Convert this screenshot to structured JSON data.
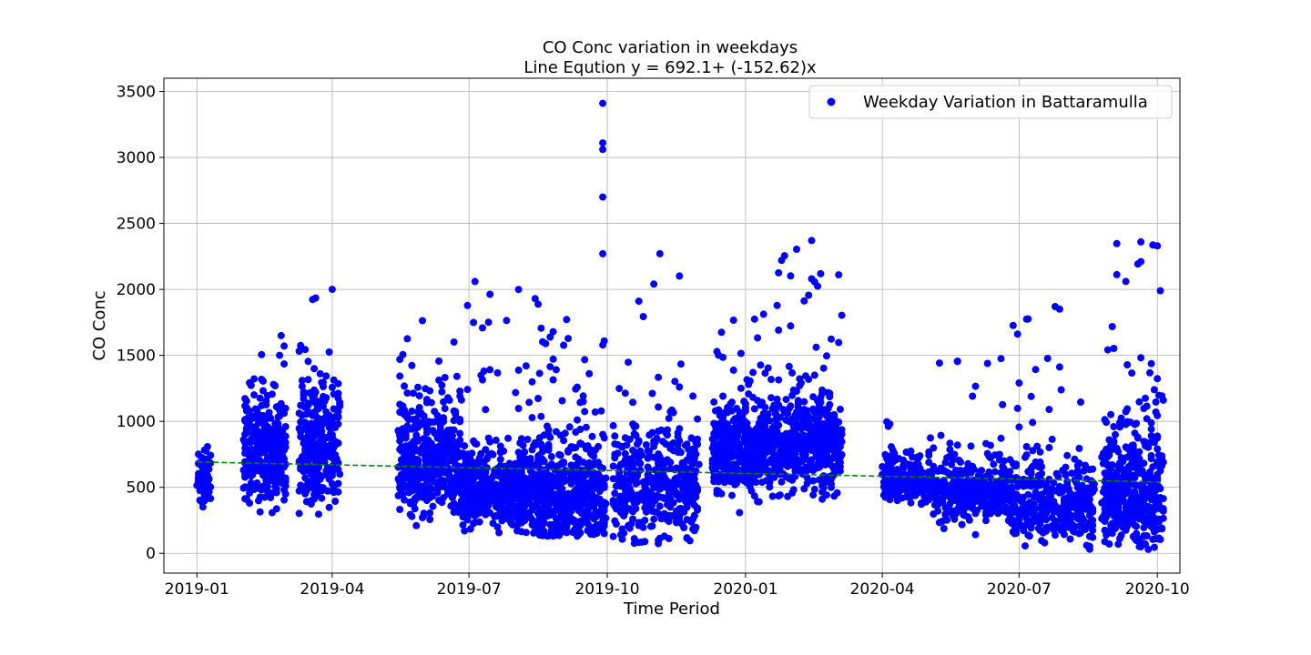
{
  "chart_data": {
    "type": "scatter",
    "title": "CO Conc variation in weekdays",
    "subtitle": "Line Eqution y = 692.1+ (-152.62)x",
    "xlabel": "Time Period",
    "ylabel": "CO Conc",
    "x_range": [
      "2018-12-10",
      "2020-10-16"
    ],
    "ylim": [
      -150,
      3600
    ],
    "x_ticks": [
      "2019-01",
      "2019-04",
      "2019-07",
      "2019-10",
      "2020-01",
      "2020-04",
      "2020-07",
      "2020-10"
    ],
    "y_ticks": [
      0,
      500,
      1000,
      1500,
      2000,
      2500,
      3000,
      3500
    ],
    "grid": true,
    "legend": {
      "placement": "top-right",
      "entries": [
        "Weekday Variation in Battaramulla"
      ]
    },
    "series": [
      {
        "name": "Weekday Variation in Battaramulla",
        "color": "#0000ff",
        "marker": "circle",
        "clusters": [
          {
            "start": "2019-01-01",
            "end": "2019-01-10",
            "count": 70,
            "median": 520,
            "spread": 140,
            "min": 250,
            "max": 940
          },
          {
            "start": "2019-02-01",
            "end": "2019-03-01",
            "count": 340,
            "median": 680,
            "spread": 230,
            "min": 50,
            "max": 1670
          },
          {
            "start": "2019-03-10",
            "end": "2019-04-06",
            "count": 300,
            "median": 700,
            "spread": 280,
            "min": 60,
            "max": 2000
          },
          {
            "start": "2019-05-15",
            "end": "2019-06-25",
            "count": 420,
            "median": 600,
            "spread": 280,
            "min": 200,
            "max": 1810
          },
          {
            "start": "2019-06-25",
            "end": "2019-08-20",
            "count": 520,
            "median": 430,
            "spread": 200,
            "min": 150,
            "max": 2060
          },
          {
            "start": "2019-08-15",
            "end": "2019-09-30",
            "count": 480,
            "median": 360,
            "spread": 260,
            "min": 130,
            "max": 1870
          },
          {
            "start": "2019-10-05",
            "end": "2019-12-01",
            "count": 430,
            "median": 450,
            "spread": 300,
            "min": 70,
            "max": 2270
          },
          {
            "start": "2019-12-10",
            "end": "2020-01-12",
            "count": 380,
            "median": 700,
            "spread": 200,
            "min": 280,
            "max": 1850
          },
          {
            "start": "2020-01-12",
            "end": "2020-03-05",
            "count": 520,
            "median": 760,
            "spread": 240,
            "min": 400,
            "max": 2370
          },
          {
            "start": "2020-04-01",
            "end": "2020-05-05",
            "count": 230,
            "median": 520,
            "spread": 110,
            "min": 350,
            "max": 1010
          },
          {
            "start": "2020-05-05",
            "end": "2020-06-25",
            "count": 330,
            "median": 420,
            "spread": 160,
            "min": 50,
            "max": 1480
          },
          {
            "start": "2020-06-25",
            "end": "2020-08-20",
            "count": 380,
            "median": 330,
            "spread": 200,
            "min": 30,
            "max": 1870
          },
          {
            "start": "2020-08-25",
            "end": "2020-10-05",
            "count": 450,
            "median": 380,
            "spread": 300,
            "min": 20,
            "max": 2360
          }
        ],
        "outliers": [
          {
            "x": "2019-09-28",
            "y": 3410
          },
          {
            "x": "2019-09-28",
            "y": 3110
          },
          {
            "x": "2019-09-28",
            "y": 3060
          },
          {
            "x": "2019-09-28",
            "y": 2700
          },
          {
            "x": "2019-09-28",
            "y": 2270
          },
          {
            "x": "2019-11-01",
            "y": 2040
          },
          {
            "x": "2019-11-05",
            "y": 2270
          },
          {
            "x": "2020-01-25",
            "y": 2220
          },
          {
            "x": "2020-02-14",
            "y": 2370
          },
          {
            "x": "2020-02-14",
            "y": 2080
          },
          {
            "x": "2020-03-03",
            "y": 2110
          },
          {
            "x": "2020-09-20",
            "y": 2360
          },
          {
            "x": "2020-09-20",
            "y": 2210
          },
          {
            "x": "2020-09-10",
            "y": 2060
          },
          {
            "x": "2020-10-03",
            "y": 1990
          },
          {
            "x": "2019-07-05",
            "y": 2060
          },
          {
            "x": "2019-04-01",
            "y": 2000
          },
          {
            "x": "2020-07-25",
            "y": 1870
          }
        ]
      },
      {
        "name": "trend",
        "color": "#008000",
        "style": "dashed",
        "points": [
          {
            "x": "2019-01-01",
            "y": 692
          },
          {
            "x": "2020-10-05",
            "y": 540
          }
        ]
      }
    ]
  }
}
